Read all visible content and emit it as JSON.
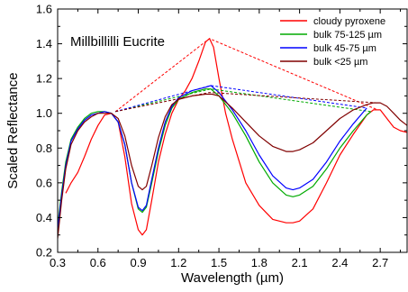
{
  "chart_data": {
    "type": "line",
    "title": "",
    "annotation": "Millbillilli Eucrite",
    "xlabel": "Wavelength (µm)",
    "ylabel": "Scaled Reflectance",
    "xlim": [
      0.3,
      2.9
    ],
    "ylim": [
      0.2,
      1.6
    ],
    "xticks": [
      0.3,
      0.6,
      0.9,
      1.2,
      1.5,
      1.8,
      2.1,
      2.4,
      2.7
    ],
    "xtick_labels": [
      "0.3",
      "0.6",
      "0.9",
      "1.2",
      "1.5",
      "1.8",
      "2.1",
      "2.4",
      "2.7"
    ],
    "yticks": [
      0.2,
      0.4,
      0.6,
      0.8,
      1.0,
      1.2,
      1.4,
      1.6
    ],
    "ytick_labels": [
      "0.2",
      "0.4",
      "0.6",
      "0.8",
      "1.0",
      "1.2",
      "1.4",
      "1.6"
    ],
    "legend_position": "top-right",
    "grid": false,
    "series": [
      {
        "name": "cloudy pyroxene",
        "color": "#ff0000",
        "x": [
          0.36,
          0.4,
          0.45,
          0.5,
          0.55,
          0.6,
          0.65,
          0.7,
          0.75,
          0.8,
          0.85,
          0.9,
          0.93,
          0.96,
          1.0,
          1.05,
          1.1,
          1.15,
          1.2,
          1.25,
          1.3,
          1.35,
          1.4,
          1.43,
          1.46,
          1.5,
          1.55,
          1.6,
          1.7,
          1.8,
          1.9,
          2.0,
          2.05,
          2.1,
          2.2,
          2.3,
          2.4,
          2.5,
          2.6,
          2.65,
          2.7,
          2.75,
          2.8,
          2.85,
          2.9
        ],
        "y": [
          0.54,
          0.6,
          0.66,
          0.75,
          0.85,
          0.93,
          0.99,
          1.0,
          0.95,
          0.75,
          0.48,
          0.33,
          0.3,
          0.33,
          0.5,
          0.72,
          0.88,
          1.0,
          1.08,
          1.13,
          1.2,
          1.3,
          1.41,
          1.43,
          1.38,
          1.2,
          1.0,
          0.85,
          0.6,
          0.47,
          0.39,
          0.37,
          0.37,
          0.38,
          0.45,
          0.6,
          0.76,
          0.88,
          0.99,
          1.02,
          1.02,
          0.97,
          0.92,
          0.9,
          0.89
        ],
        "continuum": {
          "x": [
            0.73,
            1.43,
            2.68
          ],
          "y": [
            1.01,
            1.43,
            1.02
          ]
        }
      },
      {
        "name": "bulk 75-125 µm",
        "color": "#00aa00",
        "x": [
          0.3,
          0.33,
          0.36,
          0.4,
          0.45,
          0.5,
          0.55,
          0.6,
          0.65,
          0.7,
          0.75,
          0.8,
          0.85,
          0.9,
          0.93,
          0.96,
          1.0,
          1.05,
          1.1,
          1.15,
          1.2,
          1.3,
          1.4,
          1.44,
          1.5,
          1.6,
          1.7,
          1.8,
          1.9,
          2.0,
          2.05,
          2.1,
          2.2,
          2.3,
          2.4,
          2.5,
          2.6,
          2.63
        ],
        "y": [
          0.35,
          0.55,
          0.72,
          0.85,
          0.92,
          0.97,
          1.0,
          1.01,
          1.01,
          1.0,
          0.95,
          0.82,
          0.6,
          0.45,
          0.43,
          0.46,
          0.6,
          0.78,
          0.93,
          1.03,
          1.08,
          1.12,
          1.14,
          1.14,
          1.1,
          1.0,
          0.87,
          0.72,
          0.6,
          0.53,
          0.52,
          0.53,
          0.58,
          0.68,
          0.8,
          0.9,
          0.99,
          1.01
        ],
        "continuum": {
          "x": [
            0.73,
            1.44,
            2.63
          ],
          "y": [
            1.01,
            1.14,
            1.01
          ]
        }
      },
      {
        "name": "bulk 45-75 µm",
        "color": "#0000ff",
        "x": [
          0.3,
          0.33,
          0.36,
          0.4,
          0.45,
          0.5,
          0.55,
          0.6,
          0.65,
          0.7,
          0.75,
          0.8,
          0.85,
          0.9,
          0.93,
          0.96,
          1.0,
          1.05,
          1.1,
          1.15,
          1.2,
          1.3,
          1.4,
          1.44,
          1.5,
          1.6,
          1.7,
          1.8,
          1.9,
          2.0,
          2.05,
          2.1,
          2.2,
          2.3,
          2.4,
          2.5,
          2.6
        ],
        "y": [
          0.33,
          0.53,
          0.7,
          0.84,
          0.91,
          0.96,
          0.99,
          1.0,
          1.01,
          1.0,
          0.95,
          0.82,
          0.6,
          0.46,
          0.44,
          0.47,
          0.62,
          0.8,
          0.95,
          1.04,
          1.09,
          1.13,
          1.15,
          1.16,
          1.12,
          1.02,
          0.9,
          0.76,
          0.64,
          0.57,
          0.56,
          0.57,
          0.62,
          0.72,
          0.84,
          0.94,
          1.03
        ],
        "continuum": {
          "x": [
            0.73,
            1.44,
            2.6
          ],
          "y": [
            1.01,
            1.16,
            1.03
          ]
        }
      },
      {
        "name": "bulk <25 µm",
        "color": "#800000",
        "x": [
          0.3,
          0.33,
          0.36,
          0.4,
          0.45,
          0.5,
          0.55,
          0.6,
          0.65,
          0.7,
          0.75,
          0.8,
          0.85,
          0.9,
          0.93,
          0.96,
          1.0,
          1.05,
          1.1,
          1.15,
          1.2,
          1.3,
          1.4,
          1.45,
          1.5,
          1.6,
          1.7,
          1.8,
          1.9,
          2.0,
          2.05,
          2.1,
          2.2,
          2.3,
          2.4,
          2.5,
          2.6,
          2.65,
          2.7,
          2.75,
          2.8,
          2.85,
          2.9
        ],
        "y": [
          0.28,
          0.5,
          0.68,
          0.82,
          0.9,
          0.95,
          0.98,
          1.0,
          1.0,
          1.0,
          0.97,
          0.87,
          0.7,
          0.58,
          0.56,
          0.58,
          0.7,
          0.86,
          0.98,
          1.05,
          1.08,
          1.1,
          1.11,
          1.11,
          1.1,
          1.03,
          0.95,
          0.87,
          0.81,
          0.78,
          0.78,
          0.79,
          0.83,
          0.9,
          0.97,
          1.02,
          1.05,
          1.06,
          1.06,
          1.04,
          1.0,
          0.96,
          0.93
        ],
        "continuum": {
          "x": [
            0.73,
            1.43,
            2.68
          ],
          "y": [
            1.01,
            1.12,
            1.06
          ]
        }
      }
    ]
  }
}
